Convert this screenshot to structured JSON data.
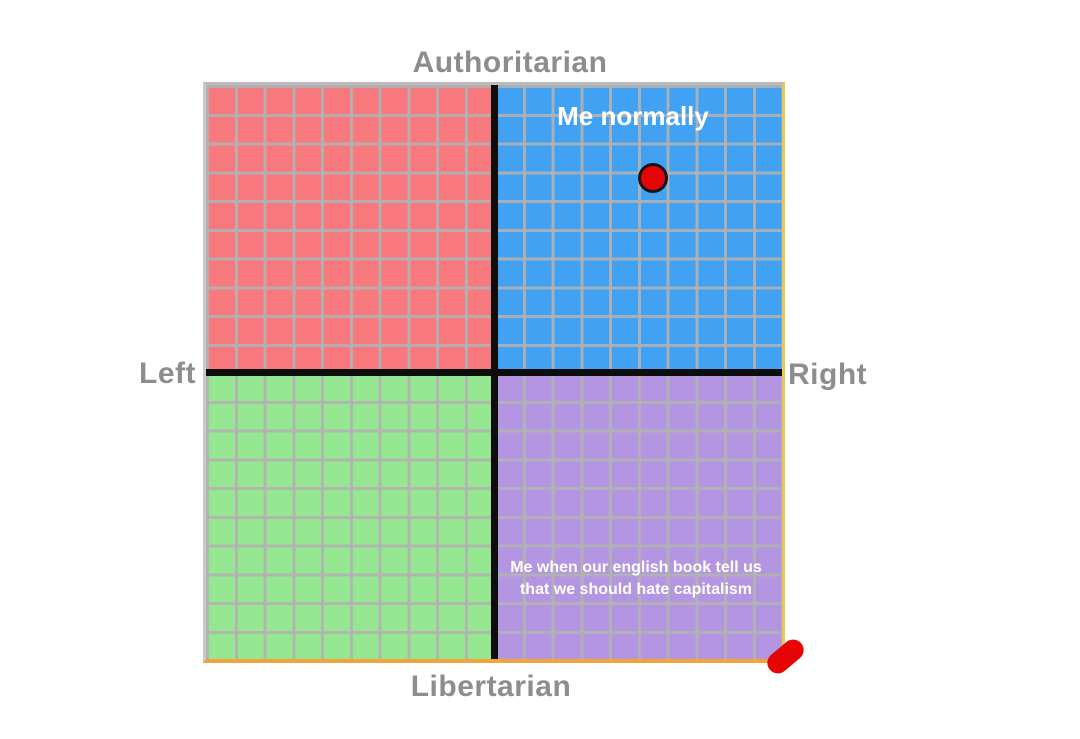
{
  "chart_data": {
    "type": "scatter",
    "variant": "political-compass",
    "axis_labels": {
      "top": "Authoritarian",
      "bottom": "Libertarian",
      "left": "Left",
      "right": "Right"
    },
    "xlim": [
      -10,
      10
    ],
    "ylim": [
      -10,
      10
    ],
    "grid": true,
    "grid_cells_per_quadrant": 10,
    "quadrants": [
      {
        "position": "top-left",
        "name": "authoritarian-left",
        "color": "#f8797d"
      },
      {
        "position": "top-right",
        "name": "authoritarian-right",
        "color": "#41a2f4"
      },
      {
        "position": "bottom-left",
        "name": "libertarian-left",
        "color": "#95e791"
      },
      {
        "position": "bottom-right",
        "name": "libertarian-right",
        "color": "#b495e2"
      }
    ],
    "points": [
      {
        "label": "Me normally",
        "x": 5.4,
        "y": 6.8,
        "marker": "circle",
        "color": "#e60506",
        "outline": "#16161e"
      },
      {
        "label": "Me when our english book tell us that we should hate capitalism",
        "x": 9.9,
        "y": -9.7,
        "marker": "blob",
        "color": "#e60506"
      }
    ]
  },
  "annotations": {
    "me_normally": "Me normally",
    "capitalism_line1": "Me when our english book tell us",
    "capitalism_line2": "that we should hate capitalism"
  },
  "colors": {
    "background": "#ffffff",
    "axis": "#0d0d0d",
    "grid_line": "#b2b2b2",
    "axis_label_text": "#8d8d8d",
    "annotation_text": "#ffffff",
    "marker_red": "#e60506",
    "marker_outline": "#16161e",
    "border_top": "#bbbbbb",
    "border_right": "#ecc94e",
    "border_bottom": "#f2a43c",
    "border_left": "#c9c9cc"
  }
}
